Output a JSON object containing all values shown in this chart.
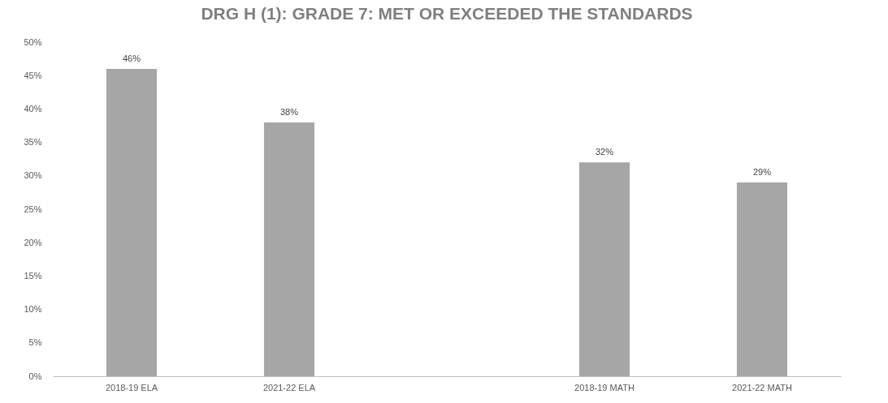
{
  "chart_data": {
    "type": "bar",
    "title": "DRG H (1): GRADE 7: MET OR EXCEEDED THE STANDARDS",
    "categories": [
      "2018-19 ELA",
      "2021-22 ELA",
      null,
      "2018-19 MATH",
      "2021-22 MATH"
    ],
    "values": [
      46,
      38,
      null,
      32,
      29
    ],
    "value_labels": [
      "46%",
      "38%",
      null,
      "32%",
      "29%"
    ],
    "color": "#a6a6a6",
    "ylim": [
      0,
      50
    ],
    "yticks": [
      {
        "value": 0,
        "label": "0%"
      },
      {
        "value": 5,
        "label": "5%"
      },
      {
        "value": 10,
        "label": "10%"
      },
      {
        "value": 15,
        "label": "15%"
      },
      {
        "value": 20,
        "label": "20%"
      },
      {
        "value": 25,
        "label": "25%"
      },
      {
        "value": 30,
        "label": "30%"
      },
      {
        "value": 35,
        "label": "35%"
      },
      {
        "value": 40,
        "label": "40%"
      },
      {
        "value": 45,
        "label": "45%"
      },
      {
        "value": 50,
        "label": "50%"
      }
    ],
    "grid": false
  }
}
